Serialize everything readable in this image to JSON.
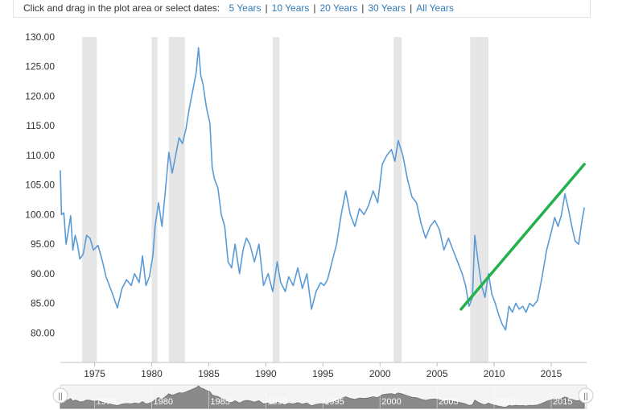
{
  "toolbar": {
    "prompt": "Click and drag in the plot area or select dates:",
    "ranges": [
      "5 Years",
      "10 Years",
      "20 Years",
      "30 Years",
      "All Years"
    ]
  },
  "colors": {
    "series": "#5b9bd5",
    "trend": "#22b14c",
    "recession": "#e6e6e6",
    "navigator_fill": "#8a8a8a"
  },
  "chart_data": {
    "type": "line",
    "title": "",
    "xlabel": "",
    "ylabel": "",
    "xlim": [
      1972.0,
      2018.1
    ],
    "ylim": [
      75.0,
      130.0
    ],
    "y_ticks": [
      "130.00",
      "125.00",
      "120.00",
      "115.00",
      "110.00",
      "105.00",
      "100.00",
      "95.00",
      "90.00",
      "85.00",
      "80.00"
    ],
    "x_ticks": [
      "1975",
      "1980",
      "1985",
      "1990",
      "1995",
      "2000",
      "2005",
      "2010",
      "2015"
    ],
    "recessions": [
      [
        1973.9,
        1975.2
      ],
      [
        1980.0,
        1980.5
      ],
      [
        1981.5,
        1982.9
      ],
      [
        1990.6,
        1991.2
      ],
      [
        2001.2,
        2001.9
      ],
      [
        2007.9,
        2009.5
      ]
    ],
    "series": [
      {
        "x": [
          1972.0,
          1972.1,
          1972.3,
          1972.5,
          1972.7,
          1972.9,
          1973.1,
          1973.3,
          1973.5,
          1973.7,
          1974.0,
          1974.3,
          1974.6,
          1974.9,
          1975.3,
          1975.7,
          1976.0,
          1976.5,
          1977.0,
          1977.4,
          1977.8,
          1978.2,
          1978.5,
          1978.9,
          1979.2,
          1979.5,
          1979.8,
          1980.1,
          1980.3,
          1980.6,
          1980.9,
          1981.2,
          1981.5,
          1981.8,
          1982.1,
          1982.4,
          1982.7,
          1983.0,
          1983.3,
          1983.6,
          1983.9,
          1984.1,
          1984.3,
          1984.5,
          1984.8,
          1985.1,
          1985.3,
          1985.5,
          1985.8,
          1986.1,
          1986.4,
          1986.7,
          1987.0,
          1987.3,
          1987.7,
          1988.0,
          1988.3,
          1988.6,
          1989.0,
          1989.4,
          1989.8,
          1990.2,
          1990.6,
          1991.0,
          1991.3,
          1991.7,
          1992.0,
          1992.4,
          1992.8,
          1993.2,
          1993.6,
          1994.0,
          1994.4,
          1994.8,
          1995.1,
          1995.4,
          1995.8,
          1996.2,
          1996.6,
          1997.0,
          1997.4,
          1997.8,
          1998.2,
          1998.6,
          1999.0,
          1999.4,
          1999.8,
          2000.2,
          2000.6,
          2001.0,
          2001.3,
          2001.6,
          2002.0,
          2002.4,
          2002.8,
          2003.2,
          2003.6,
          2004.0,
          2004.4,
          2004.8,
          2005.2,
          2005.6,
          2006.0,
          2006.4,
          2006.8,
          2007.2,
          2007.5,
          2007.8,
          2008.1,
          2008.3,
          2008.6,
          2008.9,
          2009.2,
          2009.5,
          2009.8,
          2010.1,
          2010.4,
          2010.7,
          2011.0,
          2011.3,
          2011.6,
          2011.9,
          2012.2,
          2012.5,
          2012.8,
          2013.1,
          2013.4,
          2013.8,
          2014.2,
          2014.6,
          2015.0,
          2015.3,
          2015.6,
          2015.9,
          2016.2,
          2016.5,
          2016.8,
          2017.1,
          2017.4,
          2017.7,
          2017.9
        ],
        "y": [
          107.5,
          100.0,
          100.3,
          95.0,
          97.2,
          99.8,
          94.0,
          96.5,
          95.0,
          92.5,
          93.3,
          96.5,
          96.0,
          94.0,
          94.8,
          92.0,
          89.5,
          87.0,
          84.2,
          87.5,
          89.0,
          88.0,
          90.0,
          88.5,
          93.0,
          88.0,
          89.5,
          93.0,
          98.0,
          102.0,
          98.0,
          104.0,
          110.5,
          107.0,
          110.0,
          113.0,
          112.0,
          114.5,
          118.0,
          121.0,
          124.0,
          128.2,
          123.5,
          122.0,
          118.0,
          115.5,
          108.0,
          106.0,
          104.5,
          100.0,
          98.0,
          92.0,
          91.0,
          95.0,
          90.0,
          94.0,
          96.0,
          95.0,
          92.0,
          95.0,
          88.0,
          90.0,
          87.0,
          92.0,
          88.5,
          87.0,
          89.5,
          88.0,
          91.0,
          87.5,
          90.0,
          84.0,
          87.0,
          88.5,
          88.0,
          89.0,
          92.0,
          95.0,
          100.0,
          104.0,
          100.0,
          98.0,
          101.0,
          100.0,
          101.5,
          104.0,
          102.0,
          108.5,
          110.0,
          111.0,
          109.0,
          112.5,
          110.0,
          106.0,
          103.0,
          102.0,
          98.5,
          96.0,
          98.0,
          99.0,
          97.5,
          94.0,
          96.0,
          94.0,
          92.0,
          90.0,
          88.0,
          84.5,
          86.0,
          96.5,
          92.0,
          88.0,
          86.0,
          90.0,
          86.5,
          85.0,
          83.0,
          81.5,
          80.5,
          84.5,
          83.5,
          85.0,
          84.0,
          84.5,
          83.5,
          85.0,
          84.5,
          85.5,
          89.5,
          94.0,
          97.0,
          99.5,
          98.0,
          100.0,
          103.5,
          101.0,
          98.0,
          95.5,
          95.0,
          99.0,
          101.2
        ]
      }
    ],
    "trendline": {
      "x": [
        2007.1,
        2017.9
      ],
      "y": [
        84.0,
        108.5
      ]
    },
    "navigator_ticks": [
      "1975",
      "1980",
      "1985",
      "1990",
      "1995",
      "2000",
      "2005",
      "2010",
      "2015"
    ],
    "navigator_handle_glyph": "||"
  }
}
